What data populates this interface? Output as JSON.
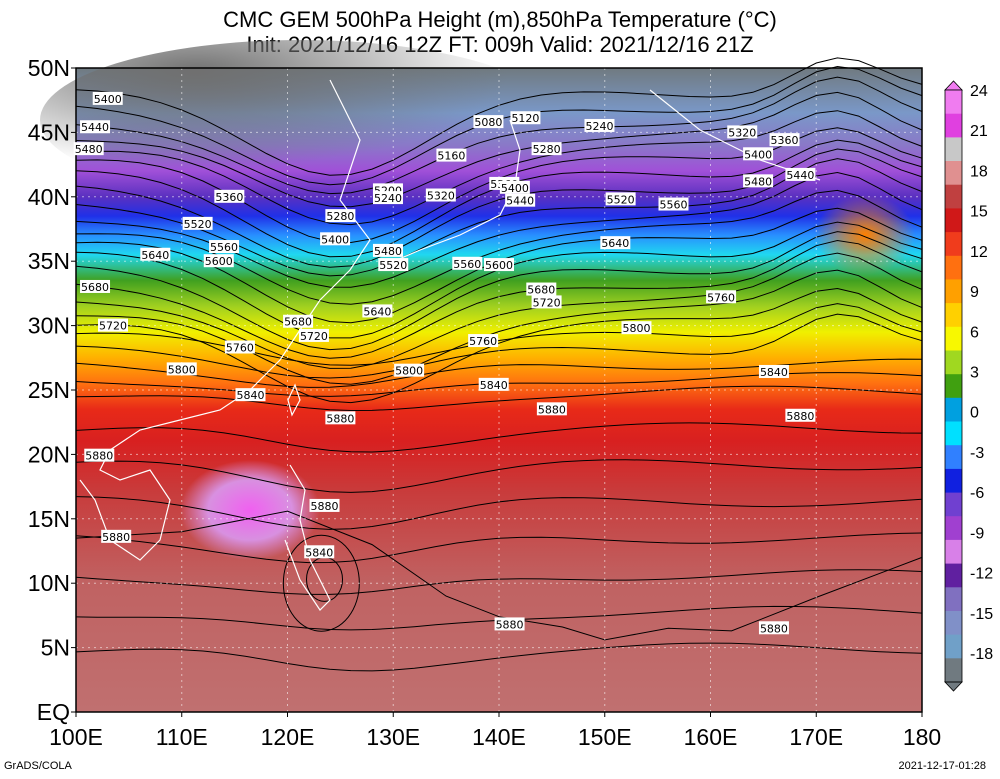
{
  "title_line1": "CMC GEM 500hPa Height (m),850hPa Temperature (°C)",
  "title_line2": "Init: 2021/12/16 12Z  FT: 009h  Valid: 2021/12/16 21Z",
  "lat_labels": [
    "50N",
    "45N",
    "40N",
    "35N",
    "30N",
    "25N",
    "20N",
    "15N",
    "10N",
    "5N",
    "EQ"
  ],
  "lon_labels": [
    "100E",
    "110E",
    "120E",
    "130E",
    "140E",
    "150E",
    "160E",
    "170E",
    "180"
  ],
  "colorbar": {
    "labels": [
      "24",
      "21",
      "18",
      "15",
      "12",
      "9",
      "6",
      "3",
      "0",
      "-3",
      "-6",
      "-9",
      "-12",
      "-15",
      "-18"
    ],
    "colors": [
      "#f07cf0",
      "#e040e0",
      "#c8c8c8",
      "#e09090",
      "#c04040",
      "#d01818",
      "#f03c1c",
      "#ff7010",
      "#ffa000",
      "#ffd000",
      "#f8f800",
      "#a0d820",
      "#40a010",
      "#00a0e0",
      "#00e0ff",
      "#3080ff",
      "#1020e0",
      "#7040d0",
      "#a040d0",
      "#d880e8",
      "#6020a0",
      "#8070c0",
      "#8090c8",
      "#70a0c8",
      "#707a80"
    ]
  },
  "contour_labels": [
    {
      "lon": 103.0,
      "lat": 47.6,
      "text": "5400"
    },
    {
      "lon": 101.8,
      "lat": 45.4,
      "text": "5440"
    },
    {
      "lon": 101.2,
      "lat": 43.7,
      "text": "5480"
    },
    {
      "lon": 114.5,
      "lat": 40.0,
      "text": "5360"
    },
    {
      "lon": 111.5,
      "lat": 37.9,
      "text": "5520"
    },
    {
      "lon": 114.0,
      "lat": 36.1,
      "text": "5560"
    },
    {
      "lon": 113.5,
      "lat": 35.0,
      "text": "5600"
    },
    {
      "lon": 107.5,
      "lat": 35.5,
      "text": "5640"
    },
    {
      "lon": 101.8,
      "lat": 33.0,
      "text": "5680"
    },
    {
      "lon": 103.5,
      "lat": 30.0,
      "text": "5720"
    },
    {
      "lon": 115.5,
      "lat": 28.3,
      "text": "5760"
    },
    {
      "lon": 110.0,
      "lat": 26.6,
      "text": "5800"
    },
    {
      "lon": 116.5,
      "lat": 24.6,
      "text": "5840"
    },
    {
      "lon": 102.2,
      "lat": 19.9,
      "text": "5880"
    },
    {
      "lon": 103.8,
      "lat": 13.6,
      "text": "5880"
    },
    {
      "lon": 125.0,
      "lat": 38.5,
      "text": "5280"
    },
    {
      "lon": 124.5,
      "lat": 36.7,
      "text": "5400"
    },
    {
      "lon": 129.5,
      "lat": 40.5,
      "text": "5200"
    },
    {
      "lon": 129.5,
      "lat": 39.9,
      "text": "5240"
    },
    {
      "lon": 134.5,
      "lat": 40.1,
      "text": "5320"
    },
    {
      "lon": 135.5,
      "lat": 43.2,
      "text": "5160"
    },
    {
      "lon": 139.0,
      "lat": 45.8,
      "text": "5080"
    },
    {
      "lon": 142.5,
      "lat": 46.1,
      "text": "5120"
    },
    {
      "lon": 129.5,
      "lat": 35.8,
      "text": "5480"
    },
    {
      "lon": 130.0,
      "lat": 34.7,
      "text": "5520"
    },
    {
      "lon": 137.0,
      "lat": 34.8,
      "text": "5560"
    },
    {
      "lon": 140.0,
      "lat": 34.7,
      "text": "5600"
    },
    {
      "lon": 128.5,
      "lat": 31.1,
      "text": "5640"
    },
    {
      "lon": 121.0,
      "lat": 30.3,
      "text": "5680"
    },
    {
      "lon": 122.5,
      "lat": 29.2,
      "text": "5720"
    },
    {
      "lon": 140.5,
      "lat": 41.0,
      "text": "5360"
    },
    {
      "lon": 141.5,
      "lat": 40.7,
      "text": "5400"
    },
    {
      "lon": 142.0,
      "lat": 39.7,
      "text": "5440"
    },
    {
      "lon": 144.5,
      "lat": 43.7,
      "text": "5280"
    },
    {
      "lon": 149.5,
      "lat": 45.5,
      "text": "5240"
    },
    {
      "lon": 163.0,
      "lat": 45.0,
      "text": "5320"
    },
    {
      "lon": 167.0,
      "lat": 44.4,
      "text": "5360"
    },
    {
      "lon": 164.5,
      "lat": 43.3,
      "text": "5400"
    },
    {
      "lon": 168.5,
      "lat": 41.7,
      "text": "5440"
    },
    {
      "lon": 164.5,
      "lat": 41.2,
      "text": "5480"
    },
    {
      "lon": 151.5,
      "lat": 39.8,
      "text": "5520"
    },
    {
      "lon": 156.5,
      "lat": 39.4,
      "text": "5560"
    },
    {
      "lon": 151.0,
      "lat": 36.4,
      "text": "5640"
    },
    {
      "lon": 144.0,
      "lat": 32.8,
      "text": "5680"
    },
    {
      "lon": 144.5,
      "lat": 31.8,
      "text": "5720"
    },
    {
      "lon": 161.0,
      "lat": 32.2,
      "text": "5760"
    },
    {
      "lon": 153.0,
      "lat": 29.8,
      "text": "5800"
    },
    {
      "lon": 138.5,
      "lat": 28.8,
      "text": "5760"
    },
    {
      "lon": 131.5,
      "lat": 26.5,
      "text": "5800"
    },
    {
      "lon": 139.5,
      "lat": 25.4,
      "text": "5840"
    },
    {
      "lon": 166.0,
      "lat": 26.4,
      "text": "5840"
    },
    {
      "lon": 125.0,
      "lat": 22.8,
      "text": "5880"
    },
    {
      "lon": 145.0,
      "lat": 23.5,
      "text": "5880"
    },
    {
      "lon": 168.5,
      "lat": 23.0,
      "text": "5880"
    },
    {
      "lon": 123.5,
      "lat": 16.0,
      "text": "5880"
    },
    {
      "lon": 123.0,
      "lat": 12.4,
      "text": "5840"
    },
    {
      "lon": 141.0,
      "lat": 6.8,
      "text": "5880"
    },
    {
      "lon": 166.0,
      "lat": 6.5,
      "text": "5880"
    }
  ],
  "footer_left": "GrADS/COLA",
  "footer_right": "2021-12-17-01:28"
}
